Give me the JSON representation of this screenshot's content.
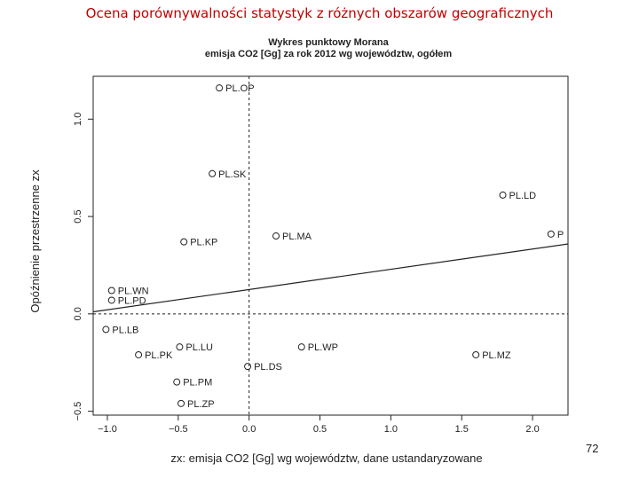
{
  "slide": {
    "title": "Ocena porównywalności statystyk z różnych obszarów geograficznych",
    "page_number": "72"
  },
  "chart_data": {
    "type": "scatter",
    "title": "Wykres punktowy Morana",
    "subtitle": "emisja CO2 [Gg] za rok 2012 wg województw, ogółem",
    "xlabel": "zx: emisja CO2 [Gg] wg województw, dane ustandaryzowane",
    "ylabel": "Opóźnienie przestrzenne zx",
    "xlim": [
      -1.1,
      2.25
    ],
    "ylim": [
      -0.52,
      1.22
    ],
    "x_ticks": [
      -1.0,
      -0.5,
      0.0,
      0.5,
      1.0,
      1.5,
      2.0
    ],
    "x_tick_labels": [
      "−1.0",
      "−0.5",
      "0.0",
      "0.5",
      "1.0",
      "1.5",
      "2.0"
    ],
    "y_ticks": [
      -0.5,
      0.0,
      0.5,
      1.0
    ],
    "y_tick_labels": [
      "−0.5",
      "0.0",
      "0.5",
      "1.0"
    ],
    "reference_lines": {
      "x": 0,
      "y": 0
    },
    "regression_line": {
      "intercept": 0.125,
      "slope": 0.104
    },
    "points": [
      {
        "label": "PL.OP",
        "x": -0.21,
        "y": 1.16
      },
      {
        "label": "PL.SK",
        "x": -0.26,
        "y": 0.72
      },
      {
        "label": "PL.LD",
        "x": 1.79,
        "y": 0.61
      },
      {
        "label": "PL.KP",
        "x": -0.46,
        "y": 0.37
      },
      {
        "label": "PL.MA",
        "x": 0.19,
        "y": 0.4
      },
      {
        "label": "P",
        "x": 2.13,
        "y": 0.41
      },
      {
        "label": "PL.WN",
        "x": -0.97,
        "y": 0.12
      },
      {
        "label": "PL.PD",
        "x": -0.97,
        "y": 0.07
      },
      {
        "label": "PL.LB",
        "x": -1.01,
        "y": -0.08
      },
      {
        "label": "PL.LU",
        "x": -0.49,
        "y": -0.17
      },
      {
        "label": "PL.WP",
        "x": 0.37,
        "y": -0.17
      },
      {
        "label": "PL.PK",
        "x": -0.78,
        "y": -0.21
      },
      {
        "label": "PL.MZ",
        "x": 1.6,
        "y": -0.21
      },
      {
        "label": "PL.DS",
        "x": -0.01,
        "y": -0.27
      },
      {
        "label": "PL.PM",
        "x": -0.51,
        "y": -0.35
      },
      {
        "label": "PL.ZP",
        "x": -0.48,
        "y": -0.46
      }
    ],
    "grid": false
  }
}
